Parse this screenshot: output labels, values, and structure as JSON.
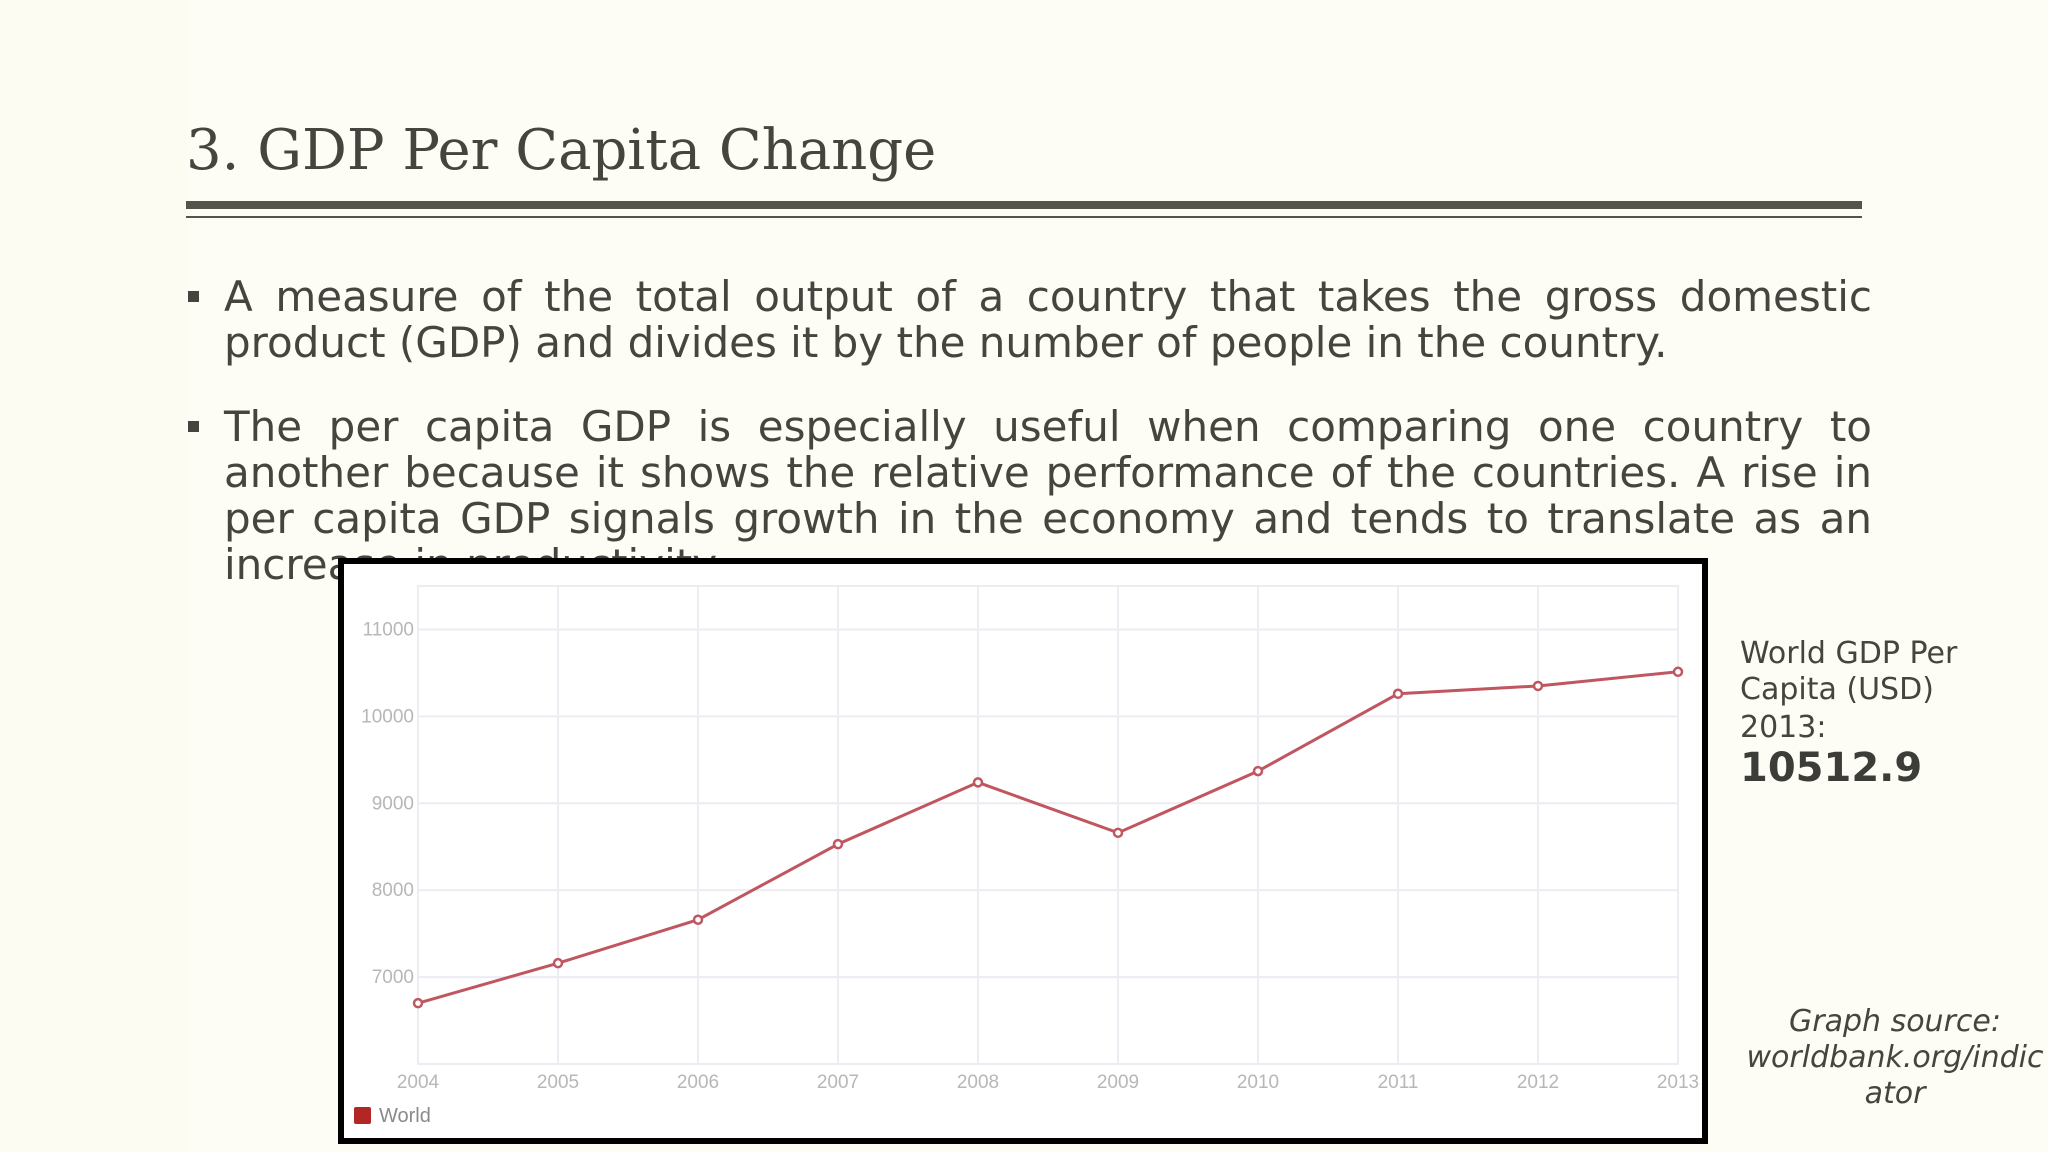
{
  "slide": {
    "title": "3. GDP Per Capita Change",
    "bullets": [
      "A measure of the total output of a country that takes the gross domestic product (GDP) and divides it by the number of people in the country.",
      "The per capita GDP is especially useful when comparing one country to another because it shows the relative performance of the countries.  A rise in per capita GDP signals growth in the economy and tends to translate as an increase in productivity."
    ],
    "side_note": {
      "label": "World GDP Per Capita (USD)",
      "year_prefix": "2013:",
      "value": "10512.9"
    },
    "source": "Graph source: worldbank.org/indic ator"
  },
  "colors": {
    "series": "#c0565f",
    "legend_swatch": "#b22626",
    "grid": "#ececf2",
    "tick_text": "#b7b7b7"
  },
  "chart_data": {
    "type": "line",
    "title": "",
    "xlabel": "",
    "ylabel": "",
    "x": [
      2004,
      2005,
      2006,
      2007,
      2008,
      2009,
      2010,
      2011,
      2012,
      2013
    ],
    "series": [
      {
        "name": "World",
        "values": [
          6700,
          7160,
          7660,
          8530,
          9240,
          8660,
          9370,
          10260,
          10350,
          10512.9
        ]
      }
    ],
    "yticks": [
      7000,
      8000,
      9000,
      10000,
      11000
    ],
    "xticks": [
      "2004",
      "2005",
      "2006",
      "2007",
      "2008",
      "2009",
      "2010",
      "2011",
      "2012",
      "2013"
    ],
    "ylim": [
      6000,
      11500
    ],
    "grid": true,
    "legend": "bottom-left"
  }
}
